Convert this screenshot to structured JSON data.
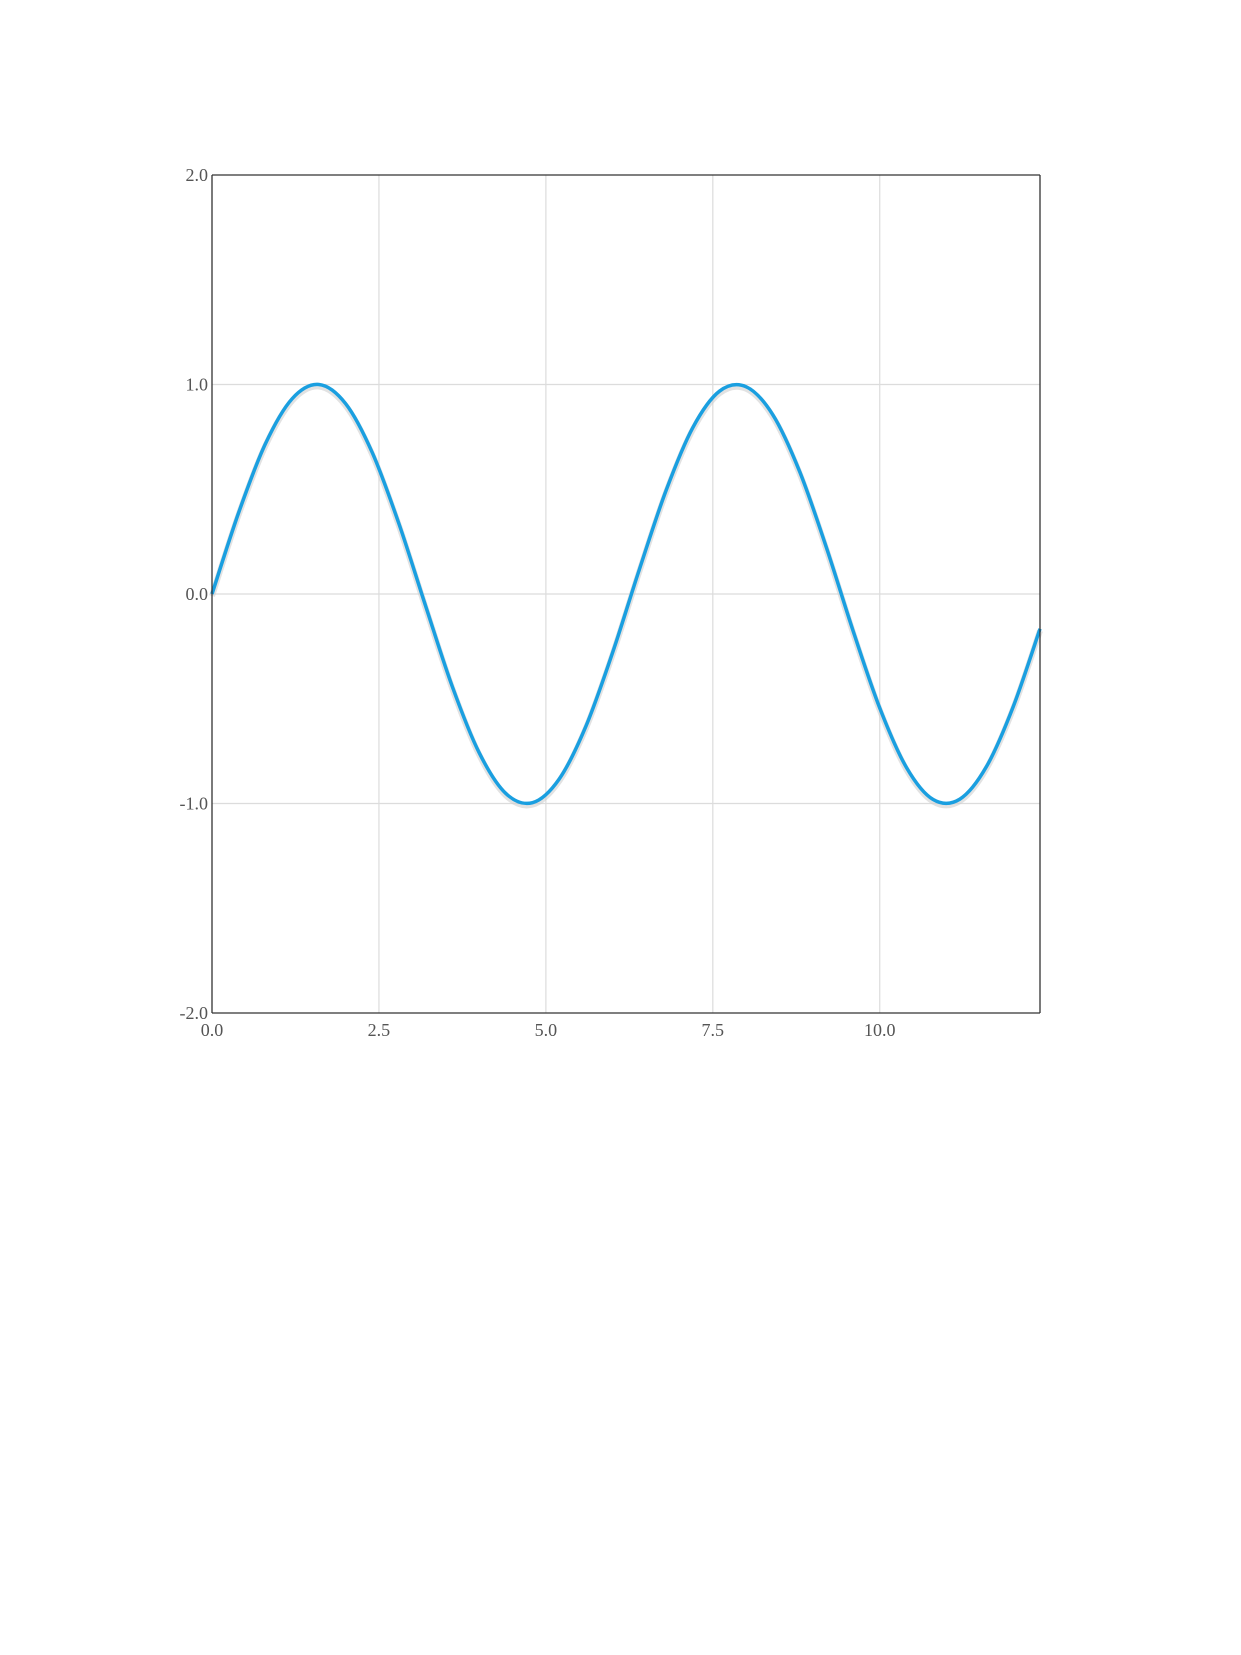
{
  "chart_data": {
    "type": "line",
    "title": "",
    "xlabel": "",
    "ylabel": "",
    "xlim": [
      0,
      12.4
    ],
    "ylim": [
      -2.0,
      2.0
    ],
    "x_ticks": [
      0.0,
      2.5,
      5.0,
      7.5,
      10.0
    ],
    "x_tick_labels": [
      "0.0",
      "2.5",
      "5.0",
      "7.5",
      "10.0"
    ],
    "y_ticks": [
      -2.0,
      -1.0,
      0.0,
      1.0,
      2.0
    ],
    "y_tick_labels": [
      "-2.0",
      "-1.0",
      "0.0",
      "1.0",
      "2.0"
    ],
    "grid": true,
    "legend": "none",
    "series": [
      {
        "color": "#1a9fe0",
        "x": [
          0.0,
          0.4,
          0.8,
          1.2,
          1.6,
          2.0,
          2.4,
          2.8,
          3.2,
          3.6,
          4.0,
          4.4,
          4.8,
          5.2,
          5.6,
          6.0,
          6.4,
          6.8,
          7.2,
          7.6,
          8.0,
          8.4,
          8.8,
          9.2,
          9.6,
          10.0,
          10.4,
          10.8,
          11.2,
          11.6,
          12.0,
          12.4
        ],
        "y": [
          0.0,
          0.389,
          0.717,
          0.932,
          1.0,
          0.909,
          0.675,
          0.335,
          -0.058,
          -0.443,
          -0.757,
          -0.952,
          -0.996,
          -0.883,
          -0.631,
          -0.279,
          0.117,
          0.494,
          0.794,
          0.968,
          0.989,
          0.855,
          0.585,
          0.223,
          -0.175,
          -0.544,
          -0.828,
          -0.981,
          -0.979,
          -0.823,
          -0.537,
          -0.166
        ]
      }
    ],
    "colors": {
      "grid": "#dcdcdc",
      "axis": "#333333",
      "tick_text": "#555555",
      "line": "#1a9fe0"
    }
  }
}
